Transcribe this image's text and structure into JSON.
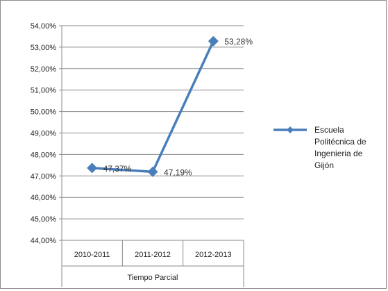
{
  "chart_data": {
    "type": "line",
    "title": "",
    "xlabel": "Tiempo Parcial",
    "ylabel": "",
    "categories": [
      "2010-2011",
      "2011-2012",
      "2012-2013"
    ],
    "series": [
      {
        "name": "Escuela Politécnica de Ingeniería de Gijón",
        "legend_lines": [
          "Escuela",
          "Politécnica de",
          "Ingenieria de",
          "Gijón"
        ],
        "values": [
          47.37,
          47.19,
          53.28
        ],
        "data_labels": [
          "47,37%",
          "47,19%",
          "53,28%"
        ],
        "color": "#4a7ebb"
      }
    ],
    "ylim": [
      44,
      54
    ],
    "y_ticks": [
      "44,00%",
      "45,00%",
      "46,00%",
      "47,00%",
      "48,00%",
      "49,00%",
      "50,00%",
      "51,00%",
      "52,00%",
      "53,00%",
      "54,00%"
    ],
    "grid": true,
    "legend_position": "right"
  }
}
